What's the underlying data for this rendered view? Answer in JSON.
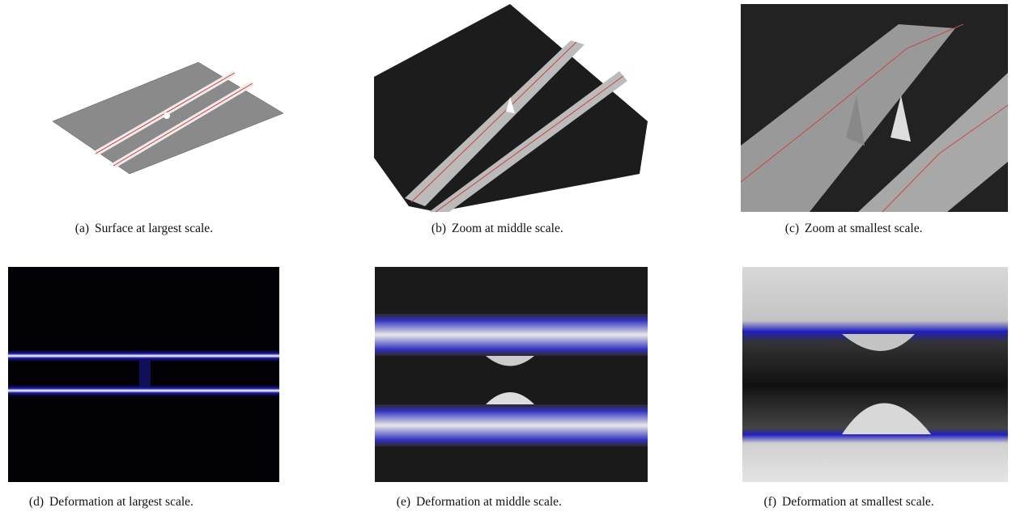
{
  "panels": [
    {
      "label": "(a)",
      "caption": "Surface at largest scale."
    },
    {
      "label": "(b)",
      "caption": "Zoom at middle scale."
    },
    {
      "label": "(c)",
      "caption": "Zoom at smallest scale."
    },
    {
      "label": "(d)",
      "caption": "Deformation at largest scale."
    },
    {
      "label": "(e)",
      "caption": "Deformation at middle scale."
    },
    {
      "label": "(f)",
      "caption": "Deformation at smallest scale."
    }
  ]
}
